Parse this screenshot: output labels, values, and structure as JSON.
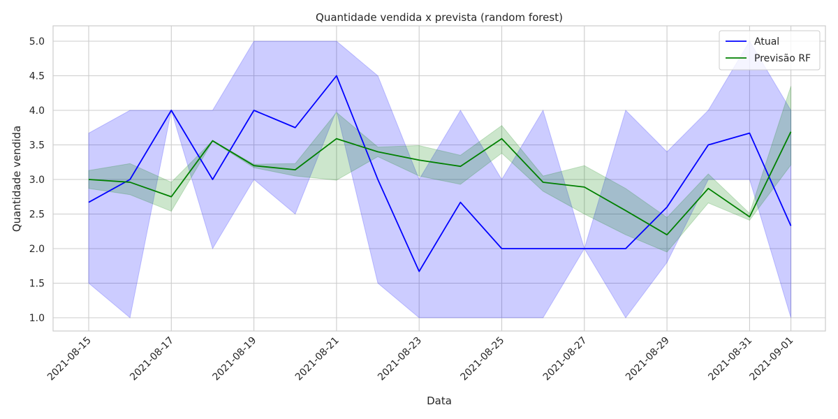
{
  "chart_data": {
    "type": "line",
    "title": "Quantidade vendida x prevista (random forest)",
    "xlabel": "Data",
    "ylabel": "Quantidade vendida",
    "x": [
      "2021-08-15",
      "2021-08-16",
      "2021-08-17",
      "2021-08-18",
      "2021-08-19",
      "2021-08-20",
      "2021-08-21",
      "2021-08-22",
      "2021-08-23",
      "2021-08-24",
      "2021-08-25",
      "2021-08-26",
      "2021-08-27",
      "2021-08-28",
      "2021-08-29",
      "2021-08-30",
      "2021-08-31",
      "2021-09-01"
    ],
    "x_ticks": [
      "2021-08-15",
      "2021-08-17",
      "2021-08-19",
      "2021-08-21",
      "2021-08-23",
      "2021-08-25",
      "2021-08-27",
      "2021-08-29",
      "2021-08-31",
      "2021-09-01"
    ],
    "y_ticks": [
      "1.0",
      "1.5",
      "2.0",
      "2.5",
      "3.0",
      "3.5",
      "4.0",
      "4.5",
      "5.0"
    ],
    "ylim": [
      0.8,
      5.2
    ],
    "grid": true,
    "legend": "top-right",
    "series": [
      {
        "name": "Atual",
        "color": "#0000ff",
        "values": [
          2.67,
          3.0,
          4.0,
          3.0,
          4.0,
          3.75,
          4.5,
          3.0,
          1.67,
          2.67,
          2.0,
          2.0,
          2.0,
          2.0,
          2.6,
          3.5,
          3.67,
          2.33
        ],
        "band_low": [
          1.5,
          1.0,
          4.0,
          2.0,
          3.0,
          2.5,
          4.0,
          1.5,
          1.0,
          1.0,
          1.0,
          1.0,
          2.0,
          1.0,
          1.8,
          3.0,
          3.0,
          1.0
        ],
        "band_high": [
          3.67,
          4.0,
          4.0,
          4.0,
          5.0,
          5.0,
          5.0,
          4.5,
          3.0,
          4.0,
          3.0,
          4.0,
          2.0,
          4.0,
          3.4,
          4.0,
          5.0,
          4.0
        ]
      },
      {
        "name": "Previsão RF",
        "color": "#008000",
        "values": [
          3.0,
          2.96,
          2.75,
          3.56,
          3.2,
          3.14,
          3.59,
          3.4,
          3.28,
          3.19,
          3.59,
          2.96,
          2.89,
          2.55,
          2.2,
          2.87,
          2.46,
          3.69
        ],
        "band_low": [
          2.87,
          2.78,
          2.54,
          3.55,
          3.17,
          3.05,
          2.99,
          3.33,
          3.05,
          2.93,
          3.38,
          2.83,
          2.5,
          2.2,
          1.95,
          2.66,
          2.41,
          3.21
        ],
        "band_high": [
          3.13,
          3.23,
          2.96,
          3.56,
          3.22,
          3.23,
          3.97,
          3.47,
          3.49,
          3.35,
          3.78,
          3.05,
          3.2,
          2.87,
          2.45,
          3.08,
          2.51,
          4.35
        ]
      }
    ]
  }
}
